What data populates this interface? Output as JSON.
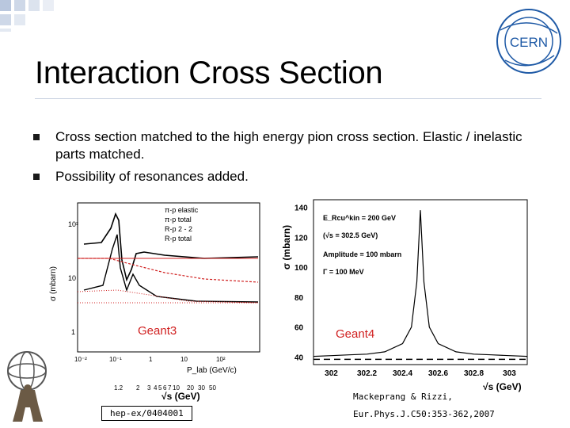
{
  "title": "Interaction Cross Section",
  "bullets": [
    "Cross section matched to the high energy pion cross section. Elastic / inelastic parts matched.",
    "Possibility of resonances added."
  ],
  "logo_text": "CERN",
  "left_plot": {
    "ylabel": "σ (mbarn)",
    "y_ticks": [
      "10²",
      "10",
      "1"
    ],
    "x_ticks_bottom": [
      "10⁻²",
      "10⁻¹",
      "1",
      "10",
      "10²"
    ],
    "x_ticks_top": [
      "1.2",
      "2",
      "3",
      "4",
      "5",
      "6",
      "7",
      "10",
      "20",
      "30",
      "50"
    ],
    "xlabel_plab": "P_lab (GeV/c)",
    "xlabel_sqrt": "√s (GeV)",
    "legend": [
      "π-p elastic",
      "π-p total",
      "R-p 2 - 2",
      "R-p total"
    ],
    "label": "Geant3"
  },
  "right_plot": {
    "ylabel": "σ (mbarn)",
    "xlabel": "√s (GeV)",
    "annotations": [
      "E_Rcu^kin = 200 GeV",
      "(√s = 302.5 GeV)",
      "Amplitude = 100 mbarn",
      "Γ = 100 MeV"
    ],
    "label": "Geant4"
  },
  "refs": {
    "left": "hep-ex/0404001",
    "right_line1": "Mackeprang & Rizzi,",
    "right_line2": "Eur.Phys.J.C50:353-362,2007"
  },
  "colors": {
    "accent": "#d02020",
    "squares": "#b9c7de",
    "cern_blue": "#1f5aa6"
  },
  "chart_data": [
    {
      "type": "line",
      "title": "",
      "ylabel": "σ (mbarn)",
      "xlabel": "P_lab (GeV/c)",
      "log_x": true,
      "log_y": true,
      "legend": [
        "π-p elastic",
        "π-p total",
        "R-p 2 - 2",
        "R-p total"
      ],
      "label": "Geant3"
    },
    {
      "type": "line",
      "title": "",
      "ylabel": "σ (mbarn)",
      "xlabel": "√s (GeV)",
      "xlim": [
        301.9,
        303.1
      ],
      "ylim": [
        35,
        145
      ],
      "x_ticks": [
        302,
        302.2,
        302.4,
        302.6,
        302.8,
        303
      ],
      "y_ticks": [
        40,
        60,
        80,
        100,
        120,
        140
      ],
      "series": [
        {
          "x": [
            301.9,
            302.0,
            302.1,
            302.2,
            302.3,
            302.4,
            302.45,
            302.48,
            302.5,
            302.52,
            302.55,
            302.6,
            302.7,
            302.8,
            302.9,
            303.0,
            303.1
          ],
          "y": [
            40.5,
            41,
            41.5,
            42,
            43.5,
            49,
            60,
            90,
            138,
            90,
            60,
            49,
            43.5,
            42,
            41.5,
            41,
            40.5
          ]
        },
        {
          "x": [
            301.9,
            303.1
          ],
          "y": [
            38.5,
            38.5
          ]
        }
      ],
      "label": "Geant4"
    }
  ]
}
